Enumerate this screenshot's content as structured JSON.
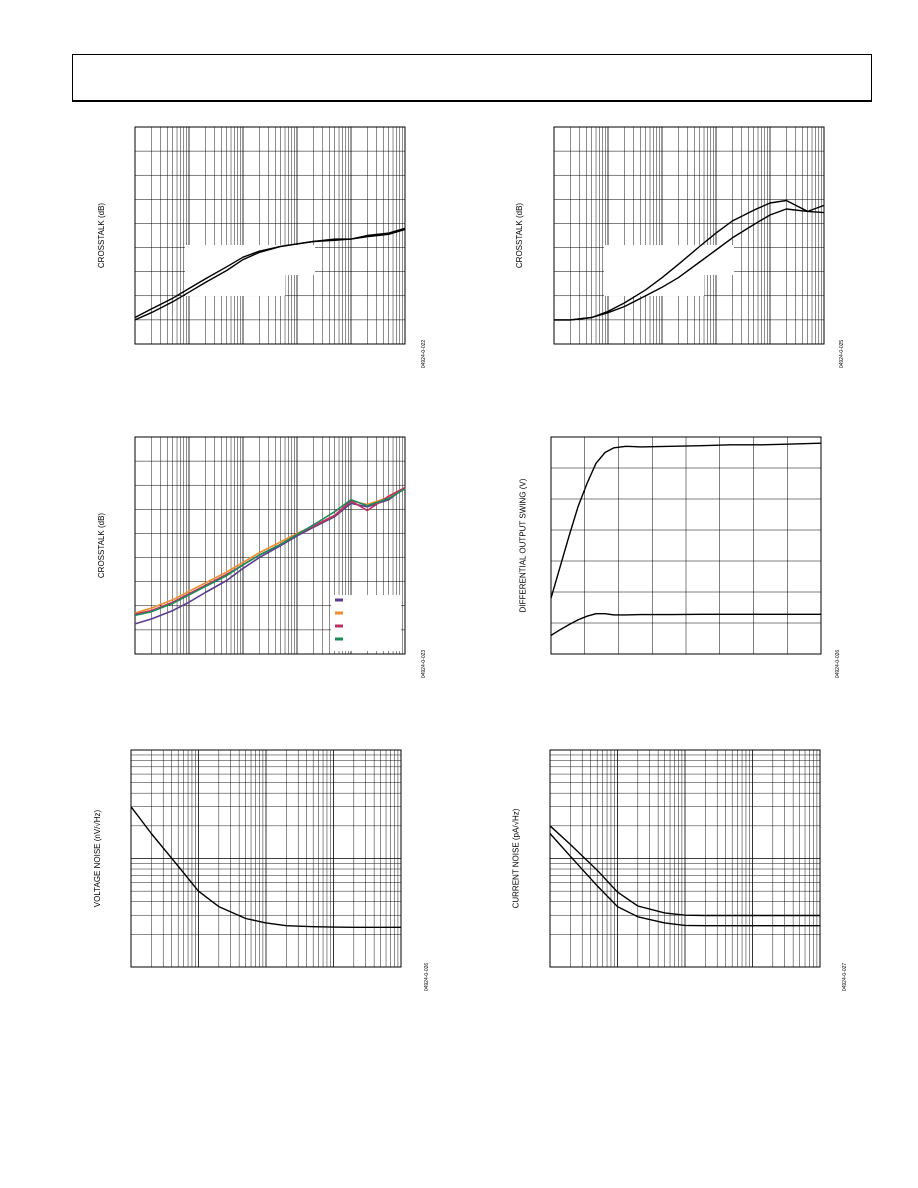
{
  "page": {
    "header": ""
  },
  "chart_data": [
    {
      "id": "fig1",
      "type": "line",
      "xscale": "log",
      "grid": true,
      "ylabel": "CROSSTALK (dB)",
      "fig_id": "04924-0-022",
      "xlim": [
        0.1,
        10000
      ],
      "ylim": [
        0,
        9
      ],
      "series": [
        {
          "color": "#000000",
          "x": [
            0.1,
            0.2,
            0.5,
            1,
            2,
            5,
            10,
            20,
            50,
            100,
            200,
            500,
            1000,
            2000,
            5000,
            10000
          ],
          "y": [
            1.0,
            1.3,
            1.75,
            2.15,
            2.55,
            3.05,
            3.5,
            3.8,
            4.05,
            4.15,
            4.25,
            4.35,
            4.35,
            4.5,
            4.6,
            4.8
          ]
        },
        {
          "color": "#000000",
          "x": [
            0.1,
            0.2,
            0.5,
            1,
            2,
            5,
            10,
            20,
            50,
            100,
            200,
            500,
            1000,
            2000,
            5000,
            10000
          ],
          "y": [
            1.1,
            1.45,
            1.9,
            2.3,
            2.7,
            3.2,
            3.6,
            3.85,
            4.05,
            4.15,
            4.25,
            4.3,
            4.35,
            4.45,
            4.55,
            4.75
          ]
        }
      ]
    },
    {
      "id": "fig2",
      "type": "line",
      "xscale": "log",
      "grid": true,
      "ylabel": "CROSSTALK (dB)",
      "fig_id": "04924-0-025",
      "xlim": [
        0.1,
        10000
      ],
      "ylim": [
        0,
        9
      ],
      "series": [
        {
          "color": "#000000",
          "x": [
            0.1,
            0.2,
            0.5,
            1,
            2,
            5,
            10,
            20,
            50,
            100,
            200,
            500,
            1000,
            2000,
            5000,
            10000
          ],
          "y": [
            1.0,
            1.0,
            1.1,
            1.35,
            1.7,
            2.25,
            2.75,
            3.3,
            4.05,
            4.6,
            5.1,
            5.55,
            5.85,
            5.95,
            5.5,
            5.45
          ]
        },
        {
          "color": "#000000",
          "x": [
            0.1,
            0.2,
            0.5,
            1,
            2,
            5,
            10,
            20,
            50,
            100,
            200,
            500,
            1000,
            2000,
            5000,
            10000
          ],
          "y": [
            1.0,
            1.0,
            1.1,
            1.3,
            1.55,
            2.0,
            2.35,
            2.75,
            3.4,
            3.9,
            4.4,
            4.95,
            5.35,
            5.6,
            5.5,
            5.75
          ]
        }
      ]
    },
    {
      "id": "fig3",
      "type": "line",
      "xscale": "log",
      "grid": true,
      "ylabel": "CROSSTALK (dB)",
      "fig_id": "04924-0-023",
      "xlim": [
        0.1,
        10000
      ],
      "ylim": [
        0,
        9
      ],
      "series": [
        {
          "color": "#5a3d8f",
          "x": [
            0.1,
            0.2,
            0.5,
            1,
            2,
            5,
            10,
            20,
            50,
            100,
            200,
            500,
            1000,
            2000,
            5000,
            10000
          ],
          "y": [
            1.25,
            1.45,
            1.8,
            2.15,
            2.55,
            3.05,
            3.55,
            4.0,
            4.5,
            4.9,
            5.25,
            5.7,
            6.25,
            6.1,
            6.4,
            6.9
          ]
        },
        {
          "color": "#ef8c2c",
          "x": [
            0.1,
            0.2,
            0.5,
            1,
            2,
            5,
            10,
            20,
            50,
            100,
            200,
            500,
            1000,
            2000,
            5000,
            10000
          ],
          "y": [
            1.7,
            1.9,
            2.25,
            2.6,
            2.95,
            3.4,
            3.8,
            4.2,
            4.65,
            5.0,
            5.3,
            5.75,
            6.35,
            6.2,
            6.5,
            6.9
          ]
        },
        {
          "color": "#c0305e",
          "x": [
            0.1,
            0.2,
            0.5,
            1,
            2,
            5,
            10,
            20,
            50,
            100,
            200,
            500,
            1000,
            2000,
            5000,
            10000
          ],
          "y": [
            1.65,
            1.8,
            2.15,
            2.5,
            2.85,
            3.3,
            3.7,
            4.1,
            4.55,
            4.95,
            5.3,
            5.75,
            6.35,
            5.95,
            6.55,
            6.9
          ]
        },
        {
          "color": "#1d8a5a",
          "x": [
            0.1,
            0.2,
            0.5,
            1,
            2,
            5,
            10,
            20,
            50,
            100,
            200,
            500,
            1000,
            2000,
            5000,
            10000
          ],
          "y": [
            1.6,
            1.75,
            2.1,
            2.45,
            2.8,
            3.25,
            3.7,
            4.1,
            4.55,
            4.95,
            5.35,
            5.9,
            6.4,
            6.15,
            6.45,
            6.85
          ]
        }
      ]
    },
    {
      "id": "fig4",
      "type": "line",
      "xscale": "linear",
      "grid": true,
      "ylabel": "DIFFERENTIAL OUTPUT SWING (V)",
      "fig_id": "04924-0-026",
      "xlim": [
        0,
        9
      ],
      "ylim": [
        0,
        7
      ],
      "series": [
        {
          "color": "#000000",
          "x": [
            0,
            0.3,
            0.6,
            0.9,
            1.2,
            1.5,
            1.8,
            2.1,
            2.5,
            3,
            4,
            5,
            6,
            7,
            8,
            9
          ],
          "y": [
            1.8,
            2.8,
            3.8,
            4.75,
            5.5,
            6.15,
            6.5,
            6.65,
            6.7,
            6.68,
            6.7,
            6.72,
            6.75,
            6.75,
            6.77,
            6.8
          ]
        },
        {
          "color": "#000000",
          "x": [
            0,
            0.3,
            0.6,
            0.9,
            1.2,
            1.5,
            1.8,
            2.1,
            2.5,
            3,
            4,
            5,
            6,
            7,
            8,
            9
          ],
          "y": [
            0.6,
            0.78,
            0.95,
            1.1,
            1.22,
            1.3,
            1.3,
            1.26,
            1.26,
            1.27,
            1.27,
            1.28,
            1.28,
            1.28,
            1.28,
            1.28
          ]
        }
      ]
    },
    {
      "id": "fig5",
      "type": "line",
      "xscale": "log",
      "yscale": "log",
      "grid": true,
      "ylabel": "VOLTAGE NOISE (nV/√Hz)",
      "fig_id": "04924-0-026",
      "xlim": [
        0.01,
        100
      ],
      "ylim": [
        1,
        100
      ],
      "series": [
        {
          "color": "#000000",
          "x": [
            0.01,
            0.02,
            0.05,
            0.1,
            0.2,
            0.5,
            1,
            2,
            5,
            10,
            20,
            50,
            100
          ],
          "y": [
            30,
            17,
            8.5,
            5.0,
            3.6,
            2.8,
            2.55,
            2.4,
            2.35,
            2.33,
            2.32,
            2.32,
            2.32
          ]
        }
      ]
    },
    {
      "id": "fig6",
      "type": "line",
      "xscale": "log",
      "yscale": "log",
      "grid": true,
      "ylabel": "CURRENT NOISE (pA/√Hz)",
      "fig_id": "04924-0-027",
      "xlim": [
        0.01,
        100
      ],
      "ylim": [
        1,
        100
      ],
      "series": [
        {
          "color": "#000000",
          "x": [
            0.01,
            0.02,
            0.05,
            0.1,
            0.2,
            0.5,
            1,
            2,
            5,
            10,
            20,
            50,
            100
          ],
          "y": [
            20,
            13.5,
            7.8,
            4.9,
            3.65,
            3.15,
            3.0,
            2.98,
            2.98,
            2.98,
            2.98,
            2.98,
            2.98
          ]
        },
        {
          "color": "#000000",
          "x": [
            0.01,
            0.02,
            0.05,
            0.1,
            0.2,
            0.5,
            1,
            2,
            5,
            10,
            20,
            50,
            100
          ],
          "y": [
            17,
            10.5,
            5.6,
            3.6,
            2.9,
            2.55,
            2.42,
            2.4,
            2.4,
            2.4,
            2.4,
            2.4,
            2.4
          ]
        }
      ]
    }
  ]
}
